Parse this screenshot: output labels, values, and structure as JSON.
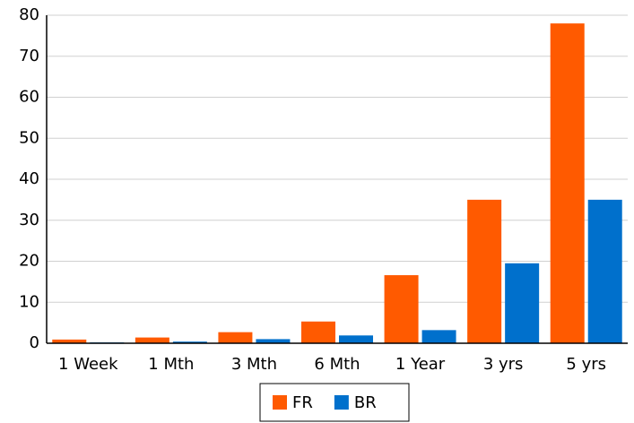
{
  "chart_data": {
    "type": "bar",
    "categories": [
      "1 Week",
      "1 Mth",
      "3 Mth",
      "6 Mth",
      "1 Year",
      "3 yrs",
      "5 yrs"
    ],
    "series": [
      {
        "name": "FR",
        "color": "#ff5a00",
        "values": [
          0.9,
          1.4,
          2.7,
          5.3,
          16.6,
          35,
          78
        ]
      },
      {
        "name": "BR",
        "color": "#0070cc",
        "values": [
          0.2,
          0.4,
          1.0,
          1.9,
          3.2,
          19.5,
          35
        ]
      }
    ],
    "ylim": [
      0,
      80
    ],
    "yticks": [
      0,
      10,
      20,
      30,
      40,
      50,
      60,
      70,
      80
    ],
    "grid": true,
    "legend": "bottom"
  }
}
